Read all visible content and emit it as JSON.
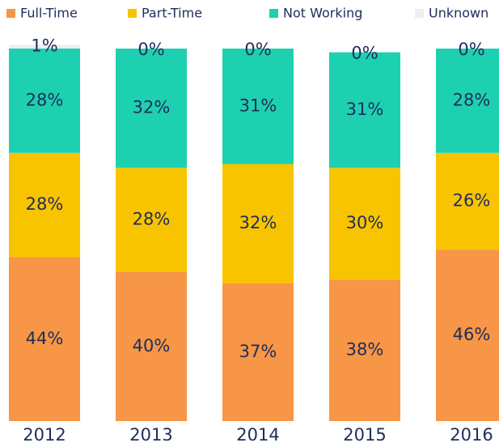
{
  "chart_data": {
    "type": "stacked_bar",
    "categories": [
      "2012",
      "2013",
      "2014",
      "2015",
      "2016"
    ],
    "series": [
      {
        "name": "Full-Time",
        "color": "#f79646",
        "values": [
          44,
          40,
          37,
          38,
          46
        ],
        "value_labels": [
          "44%",
          "40%",
          "37%",
          "38%",
          "46%"
        ]
      },
      {
        "name": "Part-Time",
        "color": "#f8c400",
        "values": [
          28,
          28,
          32,
          30,
          26
        ],
        "value_labels": [
          "28%",
          "28%",
          "32%",
          "30%",
          "26%"
        ]
      },
      {
        "name": "Not Working",
        "color": "#1dd1b0",
        "values": [
          28,
          32,
          31,
          31,
          28
        ],
        "value_labels": [
          "28%",
          "32%",
          "31%",
          "31%",
          "28%"
        ]
      },
      {
        "name": "Unknown",
        "color": "#eeeeee",
        "values": [
          1,
          0,
          0,
          0,
          0
        ],
        "value_labels": [
          "1%",
          "0%",
          "0%",
          "0%",
          "0%"
        ]
      }
    ],
    "ylim": [
      0,
      100
    ]
  }
}
